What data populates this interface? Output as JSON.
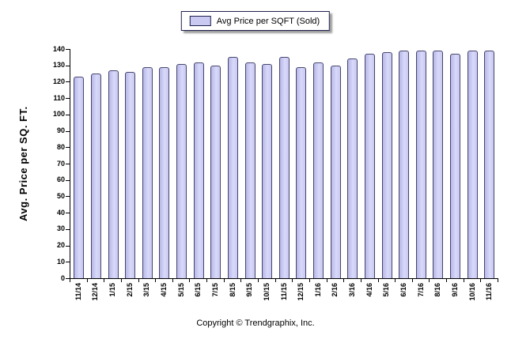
{
  "legend": {
    "label": "Avg Price per SQFT (Sold)",
    "swatch_color": "#c9c9f2",
    "swatch_border": "#1f1f4e"
  },
  "chart_data": {
    "type": "bar",
    "title": "",
    "categories": [
      "11/14",
      "12/14",
      "1/15",
      "2/15",
      "3/15",
      "4/15",
      "5/15",
      "6/15",
      "7/15",
      "8/15",
      "9/15",
      "10/15",
      "11/15",
      "12/15",
      "1/16",
      "2/16",
      "3/16",
      "4/16",
      "5/16",
      "6/16",
      "7/16",
      "8/16",
      "9/16",
      "10/16",
      "11/16"
    ],
    "values": [
      123,
      125,
      127,
      126,
      129,
      129,
      131,
      132,
      130,
      135,
      132,
      131,
      135,
      129,
      132,
      130,
      134,
      137,
      138,
      139,
      139,
      139,
      137,
      139,
      139
    ],
    "series": [
      {
        "name": "Avg Price per SQFT (Sold)"
      }
    ],
    "xlabel": "",
    "ylabel": "Avg. Price per SQ. FT.",
    "ylim": [
      0,
      140
    ],
    "y_ticks": [
      0,
      10,
      20,
      30,
      40,
      50,
      60,
      70,
      80,
      90,
      100,
      110,
      120,
      130,
      140
    ],
    "grid": false,
    "legend_position": "top",
    "bar_fill": "#c9c9f2",
    "bar_border": "#45456e",
    "axis_color": "#000000"
  },
  "footer": {
    "copyright": "Copyright © Trendgraphix, Inc."
  }
}
